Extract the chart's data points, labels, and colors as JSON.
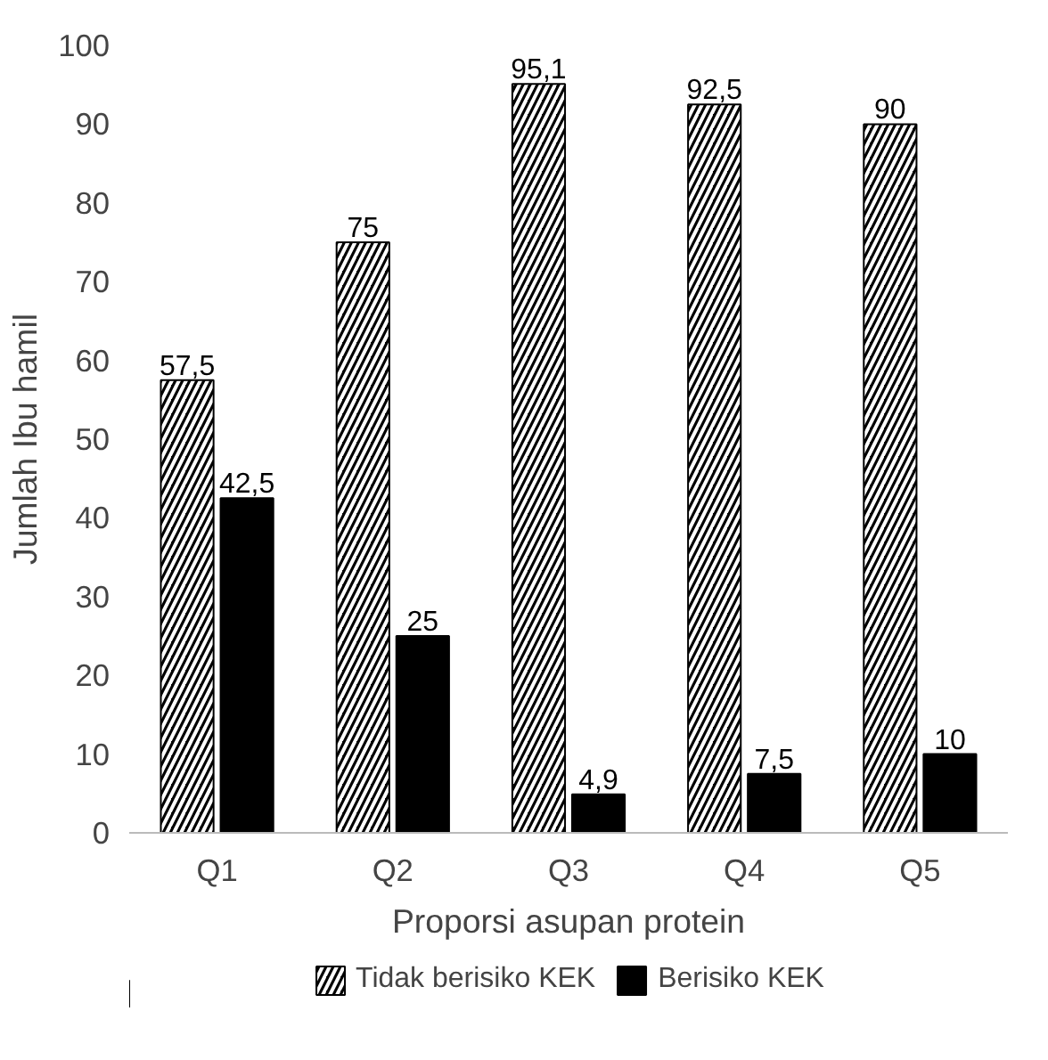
{
  "chart_data": {
    "type": "bar",
    "xlabel": "Proporsi asupan protein",
    "ylabel": "Jumlah Ibu hamil",
    "categories": [
      "Q1",
      "Q2",
      "Q3",
      "Q4",
      "Q5"
    ],
    "series": [
      {
        "name": "Tidak berisiko KEK",
        "color": "#000000",
        "values": [
          57.5,
          75,
          95.1,
          92.5,
          90
        ],
        "value_labels": [
          "57,5",
          "75",
          "95,1",
          "92,5",
          "90"
        ]
      },
      {
        "name": "Berisiko KEK",
        "color": "#000000",
        "values": [
          42.5,
          25,
          4.9,
          7.5,
          10
        ],
        "value_labels": [
          "42,5",
          "25",
          "4,9",
          "7,5",
          "10"
        ]
      }
    ],
    "ylim": [
      0,
      100
    ],
    "yticks": [
      0,
      10,
      20,
      30,
      40,
      50,
      60,
      70,
      80,
      90,
      100
    ],
    "grid": false,
    "legend": "bottom"
  }
}
